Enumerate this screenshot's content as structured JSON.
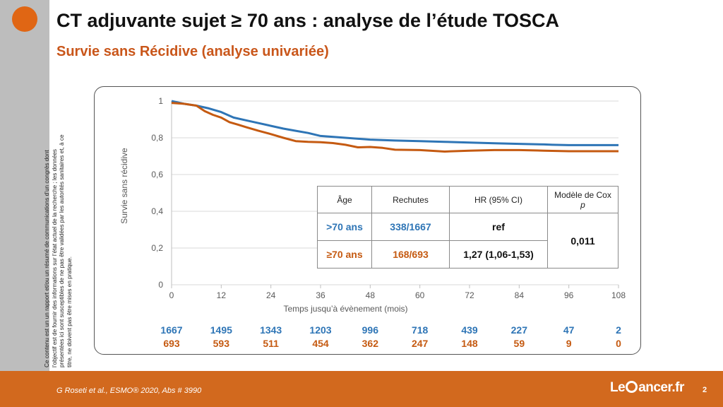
{
  "slide": {
    "title": "CT adjuvante sujet ≥ 70 ans : analyse de l’étude TOSCA",
    "subtitle": "Survie sans Récidive (analyse univariée)",
    "side_note": "Ce contenu est un un rapport et/ou un résumé de communications d’un congrès dont l’objectif est de fournir des informations sur l’état actuel de la recherche ; les données présentées ici sont susceptibles de ne pas être validées par les autorités sanitaires et, à ce titre, ne doivent pas être mises en pratique.",
    "footer_ref": "G Roseti  et al., ESMO® 2020, Abs # 3990",
    "logo_left": "Le",
    "logo_right": "ancer.fr",
    "page_number": "2"
  },
  "colors": {
    "accent": "#e06614",
    "blue": "#2e75b6",
    "orange": "#c55a11",
    "footer": "#d2691e"
  },
  "chart_data": {
    "type": "line",
    "xlabel": "Temps jusqu’à évènement (mois)",
    "ylabel": "Survie sans récidive",
    "xlim": [
      0,
      108
    ],
    "ylim": [
      0,
      1
    ],
    "x_ticks": [
      0,
      12,
      24,
      36,
      48,
      60,
      72,
      84,
      96,
      108
    ],
    "y_ticks": [
      0,
      0.2,
      0.4,
      0.6,
      0.8,
      1
    ],
    "y_tick_labels": [
      "0",
      "0,2",
      "0,4",
      "0,6",
      "0,8",
      "1"
    ],
    "grid": "horizontal",
    "series": [
      {
        "color": "#2e75b6",
        "x": [
          0,
          3,
          6,
          9,
          12,
          15,
          18,
          21,
          24,
          27,
          30,
          33,
          36,
          42,
          48,
          54,
          60,
          66,
          72,
          78,
          84,
          90,
          92,
          96,
          100,
          108
        ],
        "y": [
          1.0,
          0.985,
          0.975,
          0.96,
          0.94,
          0.91,
          0.895,
          0.88,
          0.865,
          0.85,
          0.838,
          0.826,
          0.81,
          0.8,
          0.79,
          0.785,
          0.782,
          0.778,
          0.774,
          0.77,
          0.767,
          0.764,
          0.762,
          0.76,
          0.76,
          0.76
        ]
      },
      {
        "color": "#c55a11",
        "x": [
          0,
          3,
          6,
          8,
          10,
          12,
          14,
          16,
          18,
          21,
          24,
          27,
          30,
          33,
          36,
          39,
          42,
          45,
          48,
          51,
          54,
          60,
          66,
          72,
          78,
          84,
          90,
          96,
          102,
          108
        ],
        "y": [
          0.99,
          0.985,
          0.975,
          0.945,
          0.925,
          0.91,
          0.885,
          0.872,
          0.858,
          0.838,
          0.82,
          0.8,
          0.782,
          0.778,
          0.776,
          0.771,
          0.762,
          0.748,
          0.75,
          0.745,
          0.735,
          0.733,
          0.725,
          0.73,
          0.733,
          0.733,
          0.73,
          0.727,
          0.727,
          0.727
        ]
      }
    ],
    "at_risk": {
      "blue": [
        1667,
        1495,
        1343,
        1203,
        996,
        718,
        439,
        227,
        47,
        2
      ],
      "orange": [
        693,
        593,
        511,
        454,
        362,
        247,
        148,
        59,
        9,
        0
      ]
    },
    "table": {
      "headers": [
        "Âge",
        "Rechutes",
        "HR  (95% CI)",
        "Modèle  de Cox",
        "p"
      ],
      "rows": [
        {
          "age": ">70 ans",
          "rechutes": "338/1667",
          "hr": "ref"
        },
        {
          "age": "≥70 ans",
          "rechutes": "168/693",
          "hr": "1,27 (1,06-1,53)"
        }
      ],
      "cox_p": "0,011"
    }
  }
}
